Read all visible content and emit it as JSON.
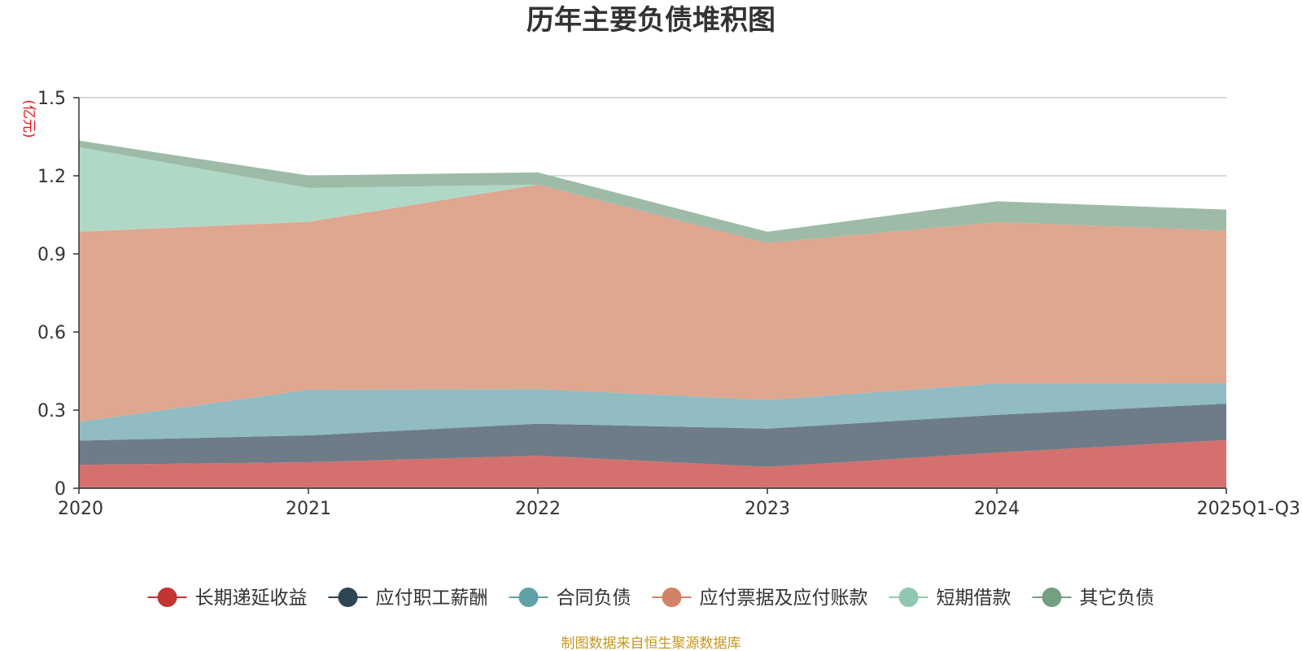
{
  "chart_data": {
    "type": "area",
    "stacked": true,
    "title": "历年主要负债堆积图",
    "unit_label": "(亿元)",
    "categories": [
      "2020",
      "2021",
      "2022",
      "2023",
      "2024",
      "2025Q1-Q3"
    ],
    "ylim": [
      0,
      1.5
    ],
    "yticks": [
      0,
      0.3,
      0.6,
      0.9,
      1.2,
      1.5
    ],
    "ytick_labels": [
      "0",
      "0.3",
      "0.6",
      "0.9",
      "1.2",
      "1.5"
    ],
    "grid": true,
    "legend_position": "bottom",
    "series": [
      {
        "name": "长期递延收益",
        "color": "#c23531",
        "area_color": "#d4706e",
        "values": [
          0.09,
          0.1,
          0.125,
          0.082,
          0.137,
          0.185
        ]
      },
      {
        "name": "应付职工薪酬",
        "color": "#2f4554",
        "area_color": "#6e7c87",
        "values": [
          0.093,
          0.103,
          0.123,
          0.147,
          0.145,
          0.14
        ]
      },
      {
        "name": "合同负债",
        "color": "#61a0a8",
        "area_color": "#90bcc2",
        "values": [
          0.072,
          0.175,
          0.133,
          0.11,
          0.12,
          0.078
        ]
      },
      {
        "name": "应付票据及应付账款",
        "color": "#d48265",
        "area_color": "#dfa690",
        "values": [
          0.73,
          0.645,
          0.785,
          0.603,
          0.62,
          0.587
        ]
      },
      {
        "name": "短期借款",
        "color": "#91c7ae",
        "area_color": "#b0d8c6",
        "values": [
          0.325,
          0.13,
          0.0,
          0.0,
          0.0,
          0.0
        ]
      },
      {
        "name": "其它负债",
        "color": "#749f83",
        "area_color": "#9ebba8",
        "values": [
          0.025,
          0.048,
          0.047,
          0.043,
          0.08,
          0.08
        ]
      }
    ]
  },
  "source_text": "制图数据来自恒生聚源数据库"
}
